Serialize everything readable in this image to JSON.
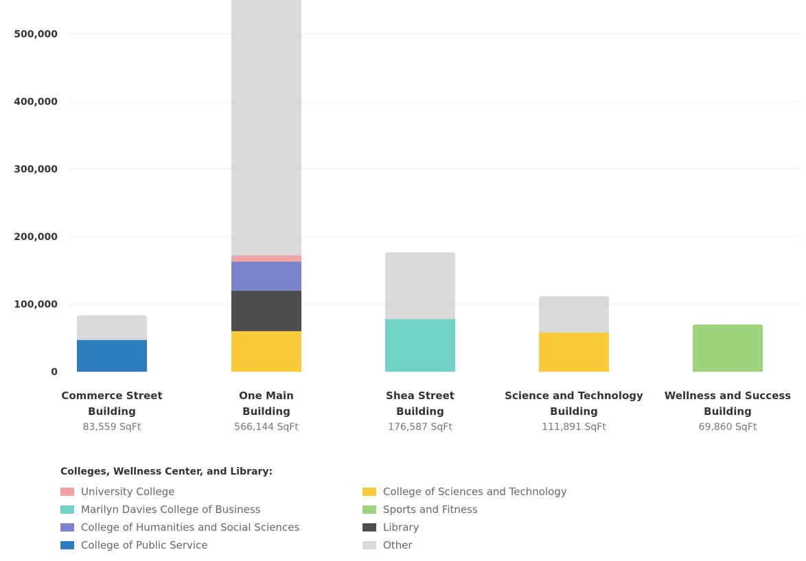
{
  "chart_data": {
    "type": "bar",
    "stacked": true,
    "categories": [
      {
        "line1": "Commerce Street",
        "line2": "Building",
        "sub": "83,559 SqFt"
      },
      {
        "line1": "One Main",
        "line2": "Building",
        "sub": "566,144 SqFt"
      },
      {
        "line1": "Shea Street",
        "line2": "Building",
        "sub": "176,587 SqFt"
      },
      {
        "line1": "Science and Technology",
        "line2": "Building",
        "sub": "111,891 SqFt"
      },
      {
        "line1": "Wellness and Success",
        "line2": "Building",
        "sub": "69,860 SqFt"
      }
    ],
    "ylim": [
      0,
      550000
    ],
    "yticks": [
      0,
      100000,
      200000,
      300000,
      400000,
      500000
    ],
    "ytick_labels": [
      "0",
      "100,000",
      "200,000",
      "300,000",
      "400,000",
      "500,000"
    ],
    "grid": true,
    "series": [
      {
        "name": "College of Public Service",
        "color": "#2e7bbd",
        "values": [
          47000,
          0,
          0,
          0,
          0
        ]
      },
      {
        "name": "College of Sciences and Technology",
        "color": "#f9c93a",
        "values": [
          0,
          60000,
          0,
          58000,
          0
        ]
      },
      {
        "name": "Marilyn Davies College of Business",
        "color": "#72d2c6",
        "values": [
          0,
          0,
          78000,
          0,
          0
        ]
      },
      {
        "name": "Sports and Fitness",
        "color": "#9fd47f",
        "values": [
          0,
          0,
          0,
          0,
          69860
        ]
      },
      {
        "name": "Library",
        "color": "#4d4d4f",
        "values": [
          0,
          60000,
          0,
          0,
          0
        ]
      },
      {
        "name": "College of Humanities and Social Sciences",
        "color": "#7b83cc",
        "values": [
          0,
          43000,
          0,
          0,
          0
        ]
      },
      {
        "name": "University College",
        "color": "#f1a3a3",
        "values": [
          0,
          9000,
          0,
          0,
          0
        ]
      },
      {
        "name": "Other",
        "color": "#d9d9d9",
        "values": [
          36559,
          394144,
          98587,
          53891,
          0
        ]
      }
    ]
  },
  "legend": {
    "title": "Colleges, Wellness Center, and Library:",
    "items": [
      {
        "label": "University College",
        "color": "#f1a3a3"
      },
      {
        "label": "College of Sciences and Technology",
        "color": "#f9c93a"
      },
      {
        "label": "Marilyn Davies College of Business",
        "color": "#72d2c6"
      },
      {
        "label": "Sports and Fitness",
        "color": "#9fd47f"
      },
      {
        "label": "College of Humanities and Social Sciences",
        "color": "#7b83cc"
      },
      {
        "label": "Library",
        "color": "#4d4d4f"
      },
      {
        "label": "College of Public Service",
        "color": "#2e7bbd"
      },
      {
        "label": "Other",
        "color": "#d9d9d9"
      }
    ]
  }
}
